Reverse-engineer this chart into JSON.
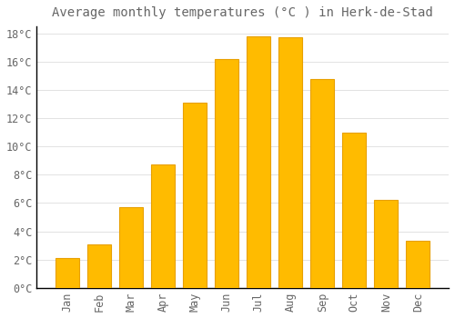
{
  "title": "Average monthly temperatures (°C ) in Herk-de-Stad",
  "months": [
    "Jan",
    "Feb",
    "Mar",
    "Apr",
    "May",
    "Jun",
    "Jul",
    "Aug",
    "Sep",
    "Oct",
    "Nov",
    "Dec"
  ],
  "values": [
    2.1,
    3.1,
    5.7,
    8.7,
    13.1,
    16.2,
    17.8,
    17.7,
    14.8,
    11.0,
    6.2,
    3.3
  ],
  "bar_color": "#FFBB00",
  "bar_edge_color": "#E8A000",
  "background_color": "#FFFFFF",
  "grid_color": "#DDDDDD",
  "text_color": "#666666",
  "spine_color": "#000000",
  "ylim": [
    0,
    18.5
  ],
  "yticks": [
    0,
    2,
    4,
    6,
    8,
    10,
    12,
    14,
    16,
    18
  ],
  "title_fontsize": 10,
  "tick_fontsize": 8.5
}
